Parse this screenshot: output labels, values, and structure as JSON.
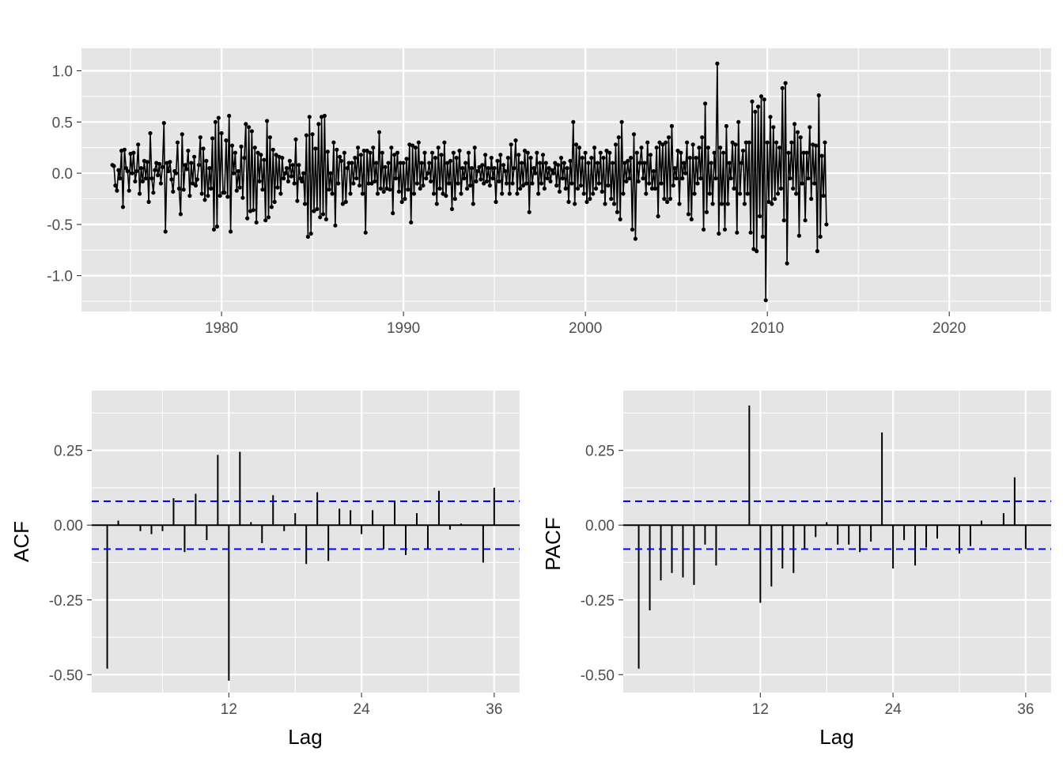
{
  "colors": {
    "panel": "#e5e5e5",
    "grid_major": "#ffffff",
    "line": "#000000",
    "ci": "#0000ff",
    "tick_text": "#4d4d4d"
  },
  "chart_data": [
    {
      "type": "line",
      "xlabel": "",
      "ylabel": "",
      "xlim": [
        1972.3,
        2025.6
      ],
      "ylim": [
        -1.35,
        1.22
      ],
      "x_ticks": [
        1980,
        1990,
        2000,
        2010,
        2020
      ],
      "x_tick_labels": [
        "1980",
        "1990",
        "2000",
        "2010",
        "2020"
      ],
      "y_ticks": [
        -1.0,
        -0.5,
        0.0,
        0.5,
        1.0
      ],
      "y_tick_labels": [
        "-1.0",
        "-0.5",
        "0.0",
        "0.5",
        "1.0"
      ],
      "grid": true,
      "markers": true,
      "x_start": 1974.0,
      "x_step": 0.08333,
      "series": [
        {
          "values": [
            0.08,
            0.07,
            -0.12,
            -0.17,
            0.03,
            -0.05,
            0.22,
            -0.33,
            0.23,
            0.05,
            0.02,
            -0.17,
            0.19,
            0.0,
            0.2,
            -0.08,
            0.02,
            0.28,
            -0.2,
            0.05,
            -0.08,
            0.12,
            -0.05,
            0.11,
            -0.28,
            0.39,
            -0.05,
            -0.19,
            0.03,
            0.1,
            -0.02,
            0.09,
            -0.1,
            0.06,
            0.49,
            -0.57,
            0.1,
            0.02,
            0.11,
            -0.06,
            -0.18,
            0.02,
            0.0,
            0.3,
            -0.15,
            -0.4,
            0.38,
            -0.16,
            0.08,
            0.04,
            0.22,
            -0.22,
            0.1,
            -0.1,
            0.16,
            -0.12,
            -0.06,
            0.08,
            0.35,
            -0.2,
            0.24,
            -0.26,
            0.12,
            -0.22,
            0.05,
            -0.15,
            0.34,
            -0.55,
            0.5,
            -0.52,
            0.54,
            -0.22,
            0.39,
            -0.19,
            -0.19,
            0.32,
            -0.23,
            0.56,
            -0.57,
            0.27,
            0.0,
            0.2,
            -0.17,
            0.02,
            -0.14,
            0.26,
            -0.24,
            0.15,
            0.48,
            -0.44,
            0.45,
            -0.37,
            0.41,
            -0.36,
            0.25,
            -0.48,
            0.2,
            -0.08,
            0.18,
            -0.16,
            0.13,
            -0.46,
            0.51,
            -0.43,
            0.35,
            -0.33,
            0.23,
            -0.28,
            0.18,
            -0.14,
            0.16,
            -0.2,
            0.15,
            -0.05,
            0.0,
            0.05,
            -0.08,
            0.12,
            -0.03,
            0.08,
            -0.1,
            0.33,
            -0.27,
            0.08,
            -0.05,
            -0.08,
            0.0,
            -0.3,
            0.37,
            -0.62,
            0.55,
            -0.59,
            0.38,
            -0.37,
            0.24,
            -0.35,
            0.48,
            -0.43,
            0.55,
            -0.4,
            0.56,
            -0.45,
            0.21,
            -0.16,
            0.0,
            -0.2,
            0.3,
            -0.51,
            0.23,
            -0.1,
            0.16,
            0.12,
            -0.3,
            0.2,
            -0.28,
            0.05,
            0.1,
            -0.2,
            0.1,
            -0.1,
            0.15,
            -0.05,
            0.25,
            -0.12,
            0.18,
            -0.2,
            0.22,
            -0.58,
            0.22,
            -0.1,
            0.2,
            -0.1,
            0.25,
            -0.08,
            0.1,
            -0.2,
            0.4,
            -0.15,
            0.2,
            -0.18,
            0.06,
            -0.15,
            0.1,
            -0.16,
            0.25,
            -0.39,
            0.18,
            -0.05,
            0.2,
            -0.18,
            0.1,
            -0.28,
            0.1,
            -0.25,
            0.14,
            -0.16,
            0.28,
            -0.48,
            0.27,
            -0.2,
            0.25,
            -0.1,
            0.3,
            -0.15,
            0.1,
            -0.12,
            0.2,
            -0.05,
            0.0,
            0.1,
            -0.08,
            0.2,
            -0.2,
            0.15,
            -0.3,
            0.25,
            -0.15,
            0.18,
            -0.2,
            0.3,
            -0.22,
            0.1,
            -0.1,
            0.12,
            -0.35,
            0.2,
            -0.25,
            0.15,
            -0.1,
            0.22,
            -0.2,
            0.05,
            -0.05,
            0.1,
            -0.15,
            0.2,
            -0.12,
            0.05,
            -0.3,
            0.25,
            -0.08,
            0.02,
            0.06,
            -0.06,
            0.08,
            -0.1,
            0.18,
            -0.08,
            0.05,
            -0.12,
            0.15,
            -0.05,
            0.05,
            -0.28,
            0.12,
            -0.08,
            0.18,
            -0.2,
            0.08,
            0.02,
            -0.1,
            0.15,
            -0.2,
            0.28,
            -0.1,
            0.05,
            0.32,
            -0.2,
            0.18,
            -0.15,
            0.1,
            -0.12,
            0.22,
            -0.1,
            0.2,
            -0.38,
            0.15,
            -0.1,
            0.05,
            0.0,
            0.2,
            -0.2,
            0.1,
            -0.1,
            0.18,
            -0.15,
            0.1,
            -0.05,
            0.05,
            -0.08,
            0.03,
            0.0,
            0.1,
            -0.12,
            0.08,
            -0.18,
            0.15,
            -0.05,
            0.1,
            -0.15,
            0.05,
            -0.28,
            0.12,
            -0.1,
            0.5,
            -0.3,
            0.28,
            -0.15,
            0.25,
            -0.12,
            0.15,
            -0.2,
            0.2,
            -0.28,
            0.1,
            -0.25,
            0.15,
            -0.2,
            0.25,
            -0.15,
            0.1,
            -0.1,
            0.2,
            -0.18,
            0.15,
            -0.3,
            0.22,
            -0.12,
            0.2,
            -0.25,
            0.1,
            -0.3,
            0.28,
            -0.38,
            0.35,
            -0.45,
            0.5,
            -0.2,
            0.1,
            -0.08,
            0.12,
            -0.05,
            0.15,
            -0.55,
            0.38,
            -0.64,
            0.2,
            -0.08,
            0.1,
            0.25,
            -0.05,
            0.1,
            -0.2,
            0.3,
            -0.1,
            0.18,
            -0.15,
            0.02,
            -0.15,
            0.25,
            -0.42,
            0.3,
            -0.1,
            0.28,
            -0.25,
            0.3,
            -0.28,
            0.35,
            -0.25,
            0.46,
            -0.12,
            0.05,
            -0.05,
            0.22,
            -0.3,
            0.2,
            -0.05,
            0.1,
            0.0,
            0.3,
            -0.4,
            0.15,
            -0.45,
            0.28,
            -0.2,
            0.15,
            -0.1,
            0.25,
            -0.05,
            0.35,
            -0.55,
            0.68,
            -0.38,
            0.25,
            -0.2,
            0.1,
            -0.3,
            0.2,
            -0.05,
            1.07,
            -0.59,
            0.25,
            -0.3,
            0.2,
            -0.55,
            0.46,
            -0.3,
            0.1,
            -0.05,
            0.3,
            -0.15,
            0.28,
            -0.58,
            0.5,
            -0.2,
            0.1,
            0.22,
            -0.3,
            0.3,
            -0.2,
            0.3,
            -0.58,
            0.7,
            -0.74,
            0.6,
            -0.76,
            0.65,
            -0.42,
            0.75,
            -0.62,
            0.72,
            -1.24,
            0.3,
            -0.28,
            0.55,
            -0.3,
            0.45,
            -0.25,
            0.3,
            -0.2,
            0.25,
            -0.15,
            0.83,
            -0.46,
            0.88,
            -0.88,
            0.2,
            -0.05,
            0.3,
            -0.15,
            0.48,
            -0.2,
            0.4,
            -0.61,
            0.35,
            -0.1,
            0.2,
            -0.46,
            0.2,
            -0.05,
            0.45,
            -0.25,
            0.28,
            -0.1,
            0.27,
            -0.76,
            0.76,
            -0.62,
            0.17,
            -0.22,
            0.3,
            -0.5
          ]
        }
      ]
    },
    {
      "type": "bar",
      "xlabel": "Lag",
      "ylabel": "ACF",
      "xlim": [
        -0.4,
        38.3
      ],
      "ylim": [
        -0.56,
        0.45
      ],
      "x_ticks": [
        12,
        24,
        36
      ],
      "x_tick_labels": [
        "12",
        "24",
        "36"
      ],
      "y_ticks": [
        -0.5,
        -0.25,
        0.0,
        0.25
      ],
      "y_tick_labels": [
        "-0.50",
        "-0.25",
        "0.00",
        "0.25"
      ],
      "grid": true,
      "ci": 0.08,
      "lags": [
        1,
        2,
        3,
        4,
        5,
        6,
        7,
        8,
        9,
        10,
        11,
        12,
        13,
        14,
        15,
        16,
        17,
        18,
        19,
        20,
        21,
        22,
        23,
        24,
        25,
        26,
        27,
        28,
        29,
        30,
        31,
        32,
        33,
        34,
        35,
        36
      ],
      "values": [
        -0.48,
        0.015,
        0.0,
        -0.02,
        -0.03,
        -0.02,
        0.09,
        -0.09,
        0.105,
        -0.05,
        0.235,
        -0.52,
        0.245,
        0.01,
        -0.06,
        0.1,
        -0.02,
        0.04,
        -0.13,
        0.11,
        -0.12,
        0.055,
        0.05,
        -0.03,
        0.05,
        -0.08,
        0.08,
        -0.1,
        0.04,
        -0.08,
        0.115,
        -0.015,
        0.005,
        0.0,
        -0.125,
        0.125
      ]
    },
    {
      "type": "bar",
      "xlabel": "Lag",
      "ylabel": "PACF",
      "xlim": [
        -0.4,
        38.3
      ],
      "ylim": [
        -0.56,
        0.45
      ],
      "x_ticks": [
        12,
        24,
        36
      ],
      "x_tick_labels": [
        "12",
        "24",
        "36"
      ],
      "y_ticks": [
        -0.5,
        -0.25,
        0.0,
        0.25
      ],
      "y_tick_labels": [
        "-0.50",
        "-0.25",
        "0.00",
        "0.25"
      ],
      "grid": true,
      "ci": 0.08,
      "lags": [
        1,
        2,
        3,
        4,
        5,
        6,
        7,
        8,
        9,
        10,
        11,
        12,
        13,
        14,
        15,
        16,
        17,
        18,
        19,
        20,
        21,
        22,
        23,
        24,
        25,
        26,
        27,
        28,
        29,
        30,
        31,
        32,
        33,
        34,
        35,
        36
      ],
      "values": [
        -0.48,
        -0.285,
        -0.185,
        -0.16,
        -0.175,
        -0.2,
        -0.065,
        -0.135,
        0.0,
        0.0,
        0.4,
        -0.26,
        -0.205,
        -0.145,
        -0.16,
        -0.08,
        -0.04,
        0.01,
        -0.065,
        -0.065,
        -0.09,
        -0.055,
        0.31,
        -0.145,
        -0.05,
        -0.135,
        -0.075,
        -0.045,
        0.0,
        -0.095,
        -0.07,
        0.015,
        0.0,
        0.04,
        0.16,
        -0.08
      ]
    }
  ]
}
